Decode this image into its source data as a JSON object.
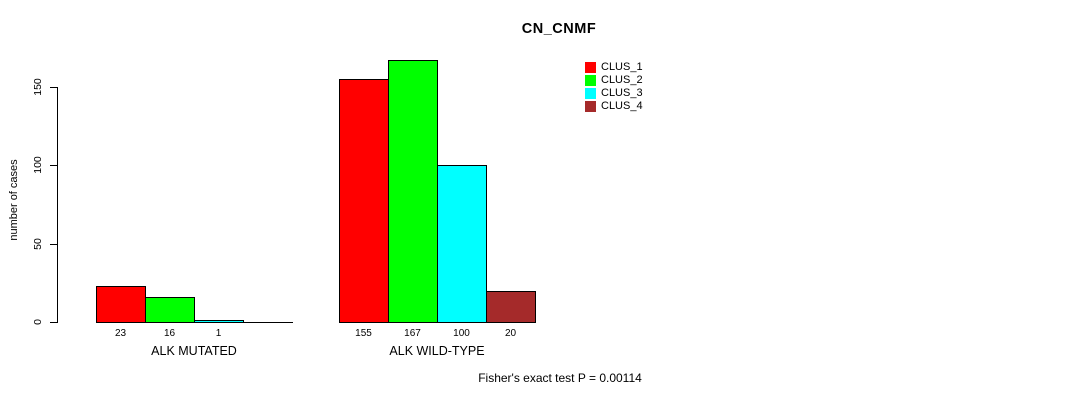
{
  "chart_data": {
    "type": "bar",
    "title": "CN_CNMF",
    "ylabel": "number of cases",
    "xlabel": "",
    "categories": [
      "ALK MUTATED",
      "ALK WILD-TYPE"
    ],
    "series": [
      {
        "name": "CLUS_1",
        "color": "#FF0000",
        "values": [
          23,
          155
        ]
      },
      {
        "name": "CLUS_2",
        "color": "#00FF00",
        "values": [
          16,
          167
        ]
      },
      {
        "name": "CLUS_3",
        "color": "#00FFFF",
        "values": [
          1,
          100
        ]
      },
      {
        "name": "CLUS_4",
        "color": "#A52A2A",
        "values": [
          0,
          20
        ]
      }
    ],
    "bar_value_labels": [
      [
        "23",
        "16",
        "1",
        ""
      ],
      [
        "155",
        "167",
        "100",
        "20"
      ]
    ],
    "yticks": [
      0,
      50,
      100,
      150
    ],
    "ylim": [
      0,
      175
    ],
    "grid": false,
    "legend_position": "top-right",
    "annotation": "Fisher's exact test P = 0.00114"
  }
}
